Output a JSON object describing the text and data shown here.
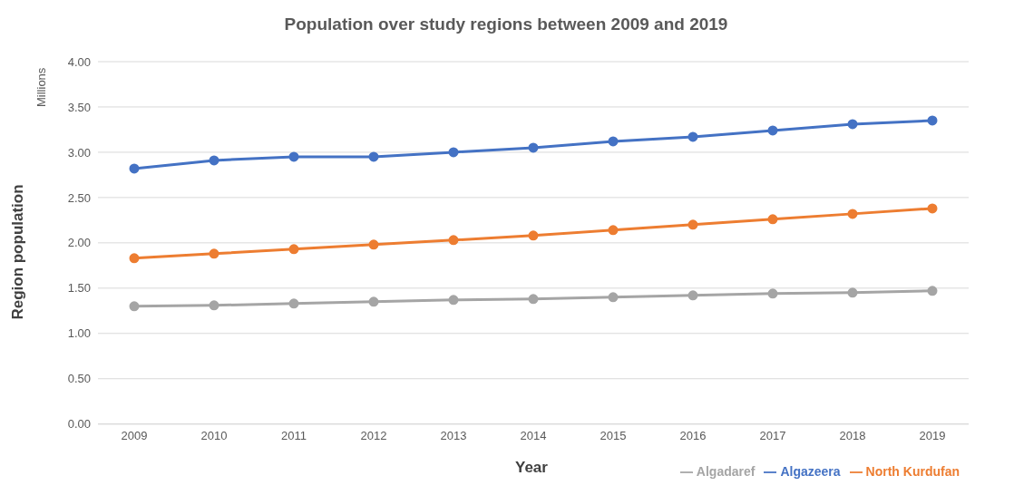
{
  "chart_data": {
    "type": "line",
    "title": "Population over study regions between 2009 and 2019",
    "xlabel": "Year",
    "ylabel": "Region population",
    "annotations": [
      "Millions"
    ],
    "categories": [
      "2009",
      "2010",
      "2011",
      "2012",
      "2013",
      "2014",
      "2015",
      "2016",
      "2017",
      "2018",
      "2019"
    ],
    "series": [
      {
        "name": "Algazeera",
        "color": "#4472c4",
        "values": [
          2.82,
          2.91,
          2.95,
          2.95,
          3.0,
          3.05,
          3.12,
          3.17,
          3.24,
          3.31,
          3.35
        ]
      },
      {
        "name": "North Kurdufan",
        "color": "#ed7d31",
        "values": [
          1.83,
          1.88,
          1.93,
          1.98,
          2.03,
          2.08,
          2.14,
          2.2,
          2.26,
          2.32,
          2.38
        ]
      },
      {
        "name": "Algadaref",
        "color": "#a5a5a5",
        "values": [
          1.3,
          1.31,
          1.33,
          1.35,
          1.37,
          1.38,
          1.4,
          1.42,
          1.44,
          1.45,
          1.47
        ]
      }
    ],
    "ylim": [
      0,
      4
    ],
    "yticks": [
      {
        "value": 0,
        "label": "0.00"
      },
      {
        "value": 0.5,
        "label": "0.50"
      },
      {
        "value": 1,
        "label": "1.00"
      },
      {
        "value": 1.5,
        "label": "1.50"
      },
      {
        "value": 2,
        "label": "2.00"
      },
      {
        "value": 2.5,
        "label": "2.50"
      },
      {
        "value": 3,
        "label": "3.00"
      },
      {
        "value": 3.5,
        "label": "3.50"
      },
      {
        "value": 4,
        "label": "4.00"
      }
    ],
    "grid": "y",
    "legend": "bottom right",
    "marker": "circle",
    "line_style": "solid"
  }
}
